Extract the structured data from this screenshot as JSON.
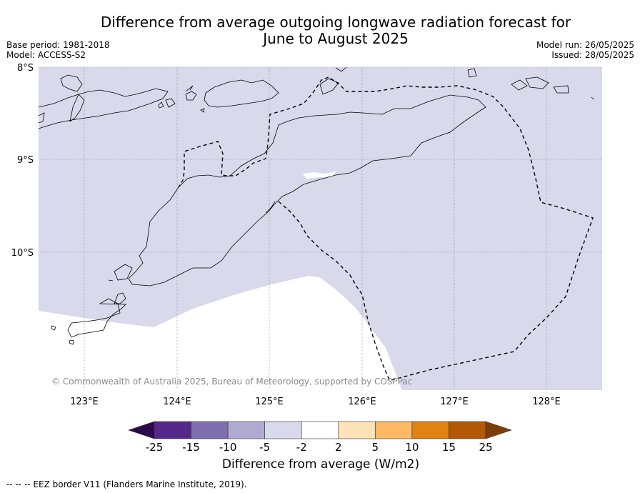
{
  "title_line1": "Difference from average outgoing longwave radiation forecast for",
  "title_line2": "June to August 2025",
  "base_period": "Base period: 1981-2018",
  "model": "Model: ACCESS-S2",
  "model_run": "Model run: 26/05/2025",
  "issued": "Issued: 28/05/2025",
  "lat_labels": [
    "8°S",
    "9°S",
    "10°S"
  ],
  "lon_labels": [
    "123°E",
    "124°E",
    "125°E",
    "126°E",
    "127°E",
    "128°E"
  ],
  "copyright": "© Commonwealth of Australia 2025, Bureau of Meteorology, supported by COSPPac",
  "colorbar": {
    "ticks": [
      "-25",
      "-15",
      "-10",
      "-5",
      "-2",
      "2",
      "5",
      "10",
      "15",
      "25"
    ],
    "colors": [
      "#2d0a4e",
      "#56288a",
      "#7f6fae",
      "#b1abd3",
      "#d8d9eb",
      "#ffffff",
      "#fee2b8",
      "#fdb863",
      "#e08214",
      "#b35806",
      "#7f3b08"
    ],
    "label": "Difference from average (W/m2)"
  },
  "map_fill_color": "#d8d9eb",
  "footnote": "-- -- -- EEZ border V11 (Flanders Marine Institute, 2019)."
}
